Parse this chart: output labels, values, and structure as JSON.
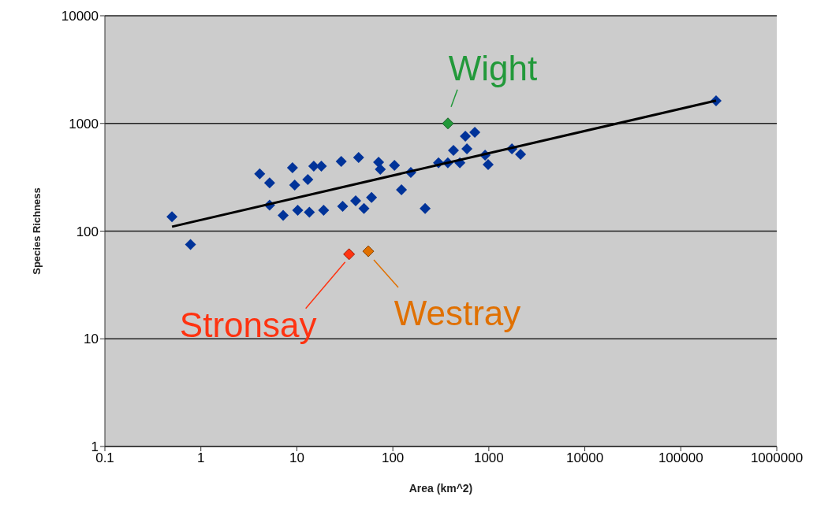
{
  "chart_data": {
    "type": "scatter",
    "xlabel": "Area (km^2)",
    "ylabel": "Species Richness",
    "log": "xy",
    "grid": "y",
    "marker": "diamond",
    "xlim": [
      0.1,
      1000000
    ],
    "xticks": [
      0.1,
      1,
      10,
      100,
      1000,
      10000,
      100000,
      1000000
    ],
    "ylim": [
      1,
      10000
    ],
    "yticks": [
      1,
      10,
      100,
      1000,
      10000
    ],
    "annotations": [
      {
        "text": "Wight",
        "x": 375,
        "y": 1000
      },
      {
        "text": "Stronsay",
        "x": 35,
        "y": 61
      },
      {
        "text": "Westray",
        "x": 55.5,
        "y": 65
      }
    ],
    "series": [
      {
        "color": "#003399",
        "x": [
          0.5,
          0.78,
          4.1,
          5.2,
          5.2,
          7.2,
          9,
          9.5,
          10.2,
          13,
          13.5,
          15,
          18,
          19,
          29,
          30,
          41,
          44,
          50,
          60,
          71,
          74,
          104,
          123,
          154,
          217,
          299,
          368,
          374,
          499,
          428,
          591,
          569,
          714,
          914,
          984,
          1740,
          2140,
          233000
        ],
        "values": [
          136,
          75,
          340,
          280,
          174,
          140,
          388,
          268,
          156,
          301,
          150,
          401,
          401,
          156,
          444,
          170,
          191,
          483,
          162,
          205,
          436,
          375,
          408,
          242,
          351,
          162,
          430,
          null,
          430,
          430,
          562,
          581,
          760,
          828,
          508,
          415,
          581,
          516,
          1620
        ]
      },
      {
        "color": "#22993a",
        "x": [
          375
        ],
        "values": [
          1000
        ]
      },
      {
        "color": "#ff3311",
        "x": [
          35
        ],
        "values": [
          61
        ]
      },
      {
        "color": "#e07000",
        "x": [
          55.5
        ],
        "values": [
          65
        ]
      },
      {
        "type": "line",
        "color": "#000000",
        "marker": "none",
        "x": [
          0.5,
          233000
        ],
        "values": [
          110,
          1630
        ]
      }
    ]
  }
}
